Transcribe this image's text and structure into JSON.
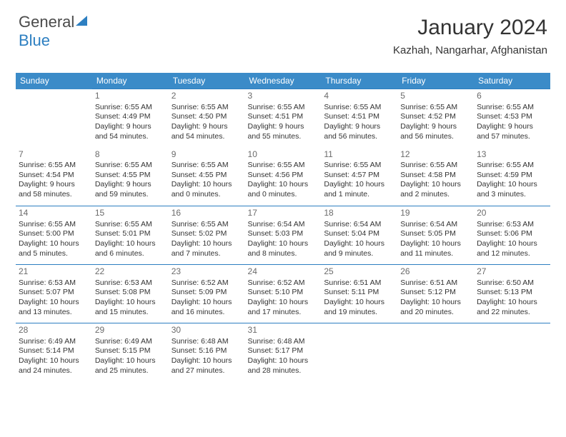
{
  "logo": {
    "part1": "General",
    "part2": "Blue"
  },
  "header": {
    "month": "January 2024",
    "location": "Kazhah, Nangarhar, Afghanistan"
  },
  "colors": {
    "header_bg": "#3b8bc8",
    "border": "#2d7fc1",
    "text": "#333333",
    "daynum": "#6b6b6b"
  },
  "weekdays": [
    "Sunday",
    "Monday",
    "Tuesday",
    "Wednesday",
    "Thursday",
    "Friday",
    "Saturday"
  ],
  "weeks": [
    [
      null,
      {
        "n": "1",
        "sr": "Sunrise: 6:55 AM",
        "ss": "Sunset: 4:49 PM",
        "dl1": "Daylight: 9 hours",
        "dl2": "and 54 minutes."
      },
      {
        "n": "2",
        "sr": "Sunrise: 6:55 AM",
        "ss": "Sunset: 4:50 PM",
        "dl1": "Daylight: 9 hours",
        "dl2": "and 54 minutes."
      },
      {
        "n": "3",
        "sr": "Sunrise: 6:55 AM",
        "ss": "Sunset: 4:51 PM",
        "dl1": "Daylight: 9 hours",
        "dl2": "and 55 minutes."
      },
      {
        "n": "4",
        "sr": "Sunrise: 6:55 AM",
        "ss": "Sunset: 4:51 PM",
        "dl1": "Daylight: 9 hours",
        "dl2": "and 56 minutes."
      },
      {
        "n": "5",
        "sr": "Sunrise: 6:55 AM",
        "ss": "Sunset: 4:52 PM",
        "dl1": "Daylight: 9 hours",
        "dl2": "and 56 minutes."
      },
      {
        "n": "6",
        "sr": "Sunrise: 6:55 AM",
        "ss": "Sunset: 4:53 PM",
        "dl1": "Daylight: 9 hours",
        "dl2": "and 57 minutes."
      }
    ],
    [
      {
        "n": "7",
        "sr": "Sunrise: 6:55 AM",
        "ss": "Sunset: 4:54 PM",
        "dl1": "Daylight: 9 hours",
        "dl2": "and 58 minutes."
      },
      {
        "n": "8",
        "sr": "Sunrise: 6:55 AM",
        "ss": "Sunset: 4:55 PM",
        "dl1": "Daylight: 9 hours",
        "dl2": "and 59 minutes."
      },
      {
        "n": "9",
        "sr": "Sunrise: 6:55 AM",
        "ss": "Sunset: 4:55 PM",
        "dl1": "Daylight: 10 hours",
        "dl2": "and 0 minutes."
      },
      {
        "n": "10",
        "sr": "Sunrise: 6:55 AM",
        "ss": "Sunset: 4:56 PM",
        "dl1": "Daylight: 10 hours",
        "dl2": "and 0 minutes."
      },
      {
        "n": "11",
        "sr": "Sunrise: 6:55 AM",
        "ss": "Sunset: 4:57 PM",
        "dl1": "Daylight: 10 hours",
        "dl2": "and 1 minute."
      },
      {
        "n": "12",
        "sr": "Sunrise: 6:55 AM",
        "ss": "Sunset: 4:58 PM",
        "dl1": "Daylight: 10 hours",
        "dl2": "and 2 minutes."
      },
      {
        "n": "13",
        "sr": "Sunrise: 6:55 AM",
        "ss": "Sunset: 4:59 PM",
        "dl1": "Daylight: 10 hours",
        "dl2": "and 3 minutes."
      }
    ],
    [
      {
        "n": "14",
        "sr": "Sunrise: 6:55 AM",
        "ss": "Sunset: 5:00 PM",
        "dl1": "Daylight: 10 hours",
        "dl2": "and 5 minutes."
      },
      {
        "n": "15",
        "sr": "Sunrise: 6:55 AM",
        "ss": "Sunset: 5:01 PM",
        "dl1": "Daylight: 10 hours",
        "dl2": "and 6 minutes."
      },
      {
        "n": "16",
        "sr": "Sunrise: 6:55 AM",
        "ss": "Sunset: 5:02 PM",
        "dl1": "Daylight: 10 hours",
        "dl2": "and 7 minutes."
      },
      {
        "n": "17",
        "sr": "Sunrise: 6:54 AM",
        "ss": "Sunset: 5:03 PM",
        "dl1": "Daylight: 10 hours",
        "dl2": "and 8 minutes."
      },
      {
        "n": "18",
        "sr": "Sunrise: 6:54 AM",
        "ss": "Sunset: 5:04 PM",
        "dl1": "Daylight: 10 hours",
        "dl2": "and 9 minutes."
      },
      {
        "n": "19",
        "sr": "Sunrise: 6:54 AM",
        "ss": "Sunset: 5:05 PM",
        "dl1": "Daylight: 10 hours",
        "dl2": "and 11 minutes."
      },
      {
        "n": "20",
        "sr": "Sunrise: 6:53 AM",
        "ss": "Sunset: 5:06 PM",
        "dl1": "Daylight: 10 hours",
        "dl2": "and 12 minutes."
      }
    ],
    [
      {
        "n": "21",
        "sr": "Sunrise: 6:53 AM",
        "ss": "Sunset: 5:07 PM",
        "dl1": "Daylight: 10 hours",
        "dl2": "and 13 minutes."
      },
      {
        "n": "22",
        "sr": "Sunrise: 6:53 AM",
        "ss": "Sunset: 5:08 PM",
        "dl1": "Daylight: 10 hours",
        "dl2": "and 15 minutes."
      },
      {
        "n": "23",
        "sr": "Sunrise: 6:52 AM",
        "ss": "Sunset: 5:09 PM",
        "dl1": "Daylight: 10 hours",
        "dl2": "and 16 minutes."
      },
      {
        "n": "24",
        "sr": "Sunrise: 6:52 AM",
        "ss": "Sunset: 5:10 PM",
        "dl1": "Daylight: 10 hours",
        "dl2": "and 17 minutes."
      },
      {
        "n": "25",
        "sr": "Sunrise: 6:51 AM",
        "ss": "Sunset: 5:11 PM",
        "dl1": "Daylight: 10 hours",
        "dl2": "and 19 minutes."
      },
      {
        "n": "26",
        "sr": "Sunrise: 6:51 AM",
        "ss": "Sunset: 5:12 PM",
        "dl1": "Daylight: 10 hours",
        "dl2": "and 20 minutes."
      },
      {
        "n": "27",
        "sr": "Sunrise: 6:50 AM",
        "ss": "Sunset: 5:13 PM",
        "dl1": "Daylight: 10 hours",
        "dl2": "and 22 minutes."
      }
    ],
    [
      {
        "n": "28",
        "sr": "Sunrise: 6:49 AM",
        "ss": "Sunset: 5:14 PM",
        "dl1": "Daylight: 10 hours",
        "dl2": "and 24 minutes."
      },
      {
        "n": "29",
        "sr": "Sunrise: 6:49 AM",
        "ss": "Sunset: 5:15 PM",
        "dl1": "Daylight: 10 hours",
        "dl2": "and 25 minutes."
      },
      {
        "n": "30",
        "sr": "Sunrise: 6:48 AM",
        "ss": "Sunset: 5:16 PM",
        "dl1": "Daylight: 10 hours",
        "dl2": "and 27 minutes."
      },
      {
        "n": "31",
        "sr": "Sunrise: 6:48 AM",
        "ss": "Sunset: 5:17 PM",
        "dl1": "Daylight: 10 hours",
        "dl2": "and 28 minutes."
      },
      null,
      null,
      null
    ]
  ]
}
